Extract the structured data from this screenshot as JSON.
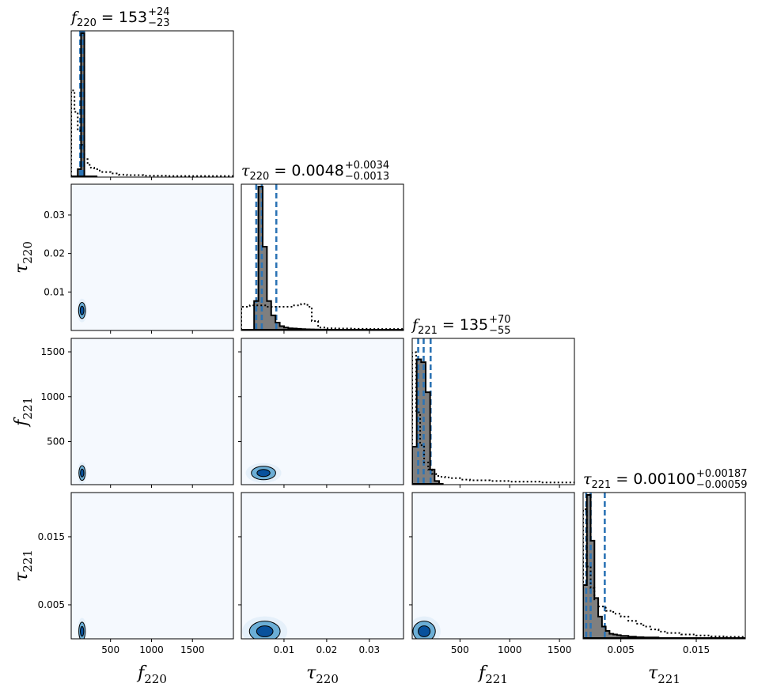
{
  "chart_data": {
    "type": "corner",
    "parameters": [
      {
        "key": "f220",
        "symbol": "f",
        "sub": "220",
        "range": [
          20,
          2000
        ],
        "ticks": [
          500,
          1000,
          1500
        ],
        "tick_labels": [
          "500",
          "1000",
          "1500"
        ],
        "title": {
          "median": "153",
          "plus": "+24",
          "minus": "−23"
        },
        "quantiles": [
          130,
          153,
          177
        ],
        "hist_edges": [
          20,
          60,
          100,
          140,
          180,
          220,
          260,
          300,
          340
        ],
        "hist_counts": [
          0.0,
          0.0,
          0.05,
          1.0,
          0.0,
          0.0,
          0.0,
          0.0
        ],
        "prior_edges": [
          20,
          60,
          100,
          140,
          180,
          220,
          260,
          300,
          350,
          400,
          500,
          600,
          700,
          900,
          1200,
          2000
        ],
        "prior_counts": [
          0.6,
          0.45,
          0.32,
          0.22,
          0.12,
          0.08,
          0.06,
          0.05,
          0.04,
          0.03,
          0.02,
          0.012,
          0.008,
          0.004,
          0.002
        ]
      },
      {
        "key": "tau220",
        "symbol": "τ",
        "sub": "220",
        "range": [
          0.0,
          0.038
        ],
        "ticks": [
          0.01,
          0.02,
          0.03
        ],
        "tick_labels": [
          "0.01",
          "0.02",
          "0.03"
        ],
        "title": {
          "median": "0.0048",
          "plus": "+0.0034",
          "minus": "−0.0013"
        },
        "quantiles": [
          0.0035,
          0.0048,
          0.0082
        ],
        "hist_edges": [
          0.0,
          0.001,
          0.002,
          0.003,
          0.004,
          0.005,
          0.006,
          0.007,
          0.008,
          0.009,
          0.01,
          0.011,
          0.012,
          0.013,
          0.014,
          0.015,
          0.016,
          0.017,
          0.018,
          0.019,
          0.02,
          0.038
        ],
        "hist_counts": [
          0.0,
          0.0,
          0.0,
          0.2,
          1.0,
          0.58,
          0.2,
          0.1,
          0.05,
          0.025,
          0.015,
          0.01,
          0.008,
          0.006,
          0.004,
          0.003,
          0.002,
          0.0015,
          0.001,
          0.0008,
          0.0
        ],
        "prior_edges": [
          0.0,
          0.002,
          0.004,
          0.006,
          0.008,
          0.01,
          0.012,
          0.014,
          0.0155,
          0.0165,
          0.018,
          0.02,
          0.022,
          0.026,
          0.03,
          0.038
        ],
        "prior_counts": [
          0.16,
          0.17,
          0.17,
          0.16,
          0.16,
          0.16,
          0.17,
          0.18,
          0.16,
          0.06,
          0.015,
          0.01,
          0.008,
          0.006,
          0.005
        ]
      },
      {
        "key": "f221",
        "symbol": "f",
        "sub": "221",
        "range": [
          20,
          1650
        ],
        "ticks": [
          500,
          1000,
          1500
        ],
        "tick_labels": [
          "500",
          "1000",
          "1500"
        ],
        "title": {
          "median": "135",
          "plus": "+70",
          "minus": "−55"
        },
        "quantiles": [
          80,
          135,
          205
        ],
        "hist_edges": [
          20,
          65,
          110,
          155,
          200,
          245,
          290,
          335
        ],
        "hist_counts": [
          0.26,
          0.87,
          0.85,
          0.64,
          0.1,
          0.02,
          0.0
        ],
        "prior_edges": [
          20,
          60,
          100,
          140,
          180,
          220,
          260,
          300,
          350,
          400,
          500,
          600,
          800,
          1000,
          1300,
          1650
        ],
        "prior_counts": [
          0.92,
          0.5,
          0.27,
          0.15,
          0.1,
          0.07,
          0.055,
          0.05,
          0.045,
          0.04,
          0.03,
          0.025,
          0.02,
          0.015,
          0.01
        ]
      },
      {
        "key": "tau221",
        "symbol": "τ",
        "sub": "221",
        "range": [
          0.0,
          0.0215
        ],
        "ticks": [
          0.005,
          0.015
        ],
        "tick_labels": [
          "0.005",
          "0.015"
        ],
        "title": {
          "median": "0.00100",
          "plus": "+0.00187",
          "minus": "−0.00059"
        },
        "quantiles": [
          0.00041,
          0.001,
          0.00287
        ],
        "hist_edges": [
          0.0,
          0.0005,
          0.001,
          0.0015,
          0.002,
          0.0025,
          0.003,
          0.0035,
          0.004,
          0.0045,
          0.005,
          0.006,
          0.007,
          0.008,
          0.01,
          0.0215
        ],
        "hist_counts": [
          0.37,
          1.0,
          0.68,
          0.28,
          0.15,
          0.08,
          0.05,
          0.03,
          0.025,
          0.02,
          0.015,
          0.01,
          0.006,
          0.004,
          0.0
        ],
        "prior_edges": [
          0.0,
          0.0005,
          0.001,
          0.0015,
          0.002,
          0.003,
          0.004,
          0.005,
          0.006,
          0.007,
          0.008,
          0.009,
          0.01,
          0.011,
          0.013,
          0.015,
          0.017,
          0.019,
          0.0215
        ],
        "prior_counts": [
          0.9,
          0.5,
          0.35,
          0.27,
          0.22,
          0.19,
          0.17,
          0.15,
          0.12,
          0.1,
          0.08,
          0.06,
          0.045,
          0.035,
          0.025,
          0.018,
          0.012,
          0.008
        ]
      }
    ],
    "contours": [
      {
        "row": 1,
        "col": 0,
        "center": [
          152,
          0.0052
        ],
        "spread": [
          28,
          0.0014
        ]
      },
      {
        "row": 2,
        "col": 0,
        "center": [
          153,
          150
        ],
        "spread": [
          26,
          55
        ]
      },
      {
        "row": 2,
        "col": 1,
        "center": [
          0.0052,
          150
        ],
        "spread": [
          0.0019,
          50
        ]
      },
      {
        "row": 3,
        "col": 0,
        "center": [
          152,
          0.0011
        ],
        "spread": [
          26,
          0.0009
        ]
      },
      {
        "row": 3,
        "col": 1,
        "center": [
          0.0055,
          0.0011
        ],
        "spread": [
          0.0024,
          0.001
        ]
      },
      {
        "row": 3,
        "col": 2,
        "center": [
          140,
          0.0011
        ],
        "spread": [
          75,
          0.001
        ]
      }
    ],
    "colors": {
      "quantile_line": "#2c74b5",
      "hist_fill": "#7f7f7f",
      "panel_background": "#f5f9fe",
      "contour_inner": "#08519c",
      "contour_outer": "#6baed6"
    }
  }
}
